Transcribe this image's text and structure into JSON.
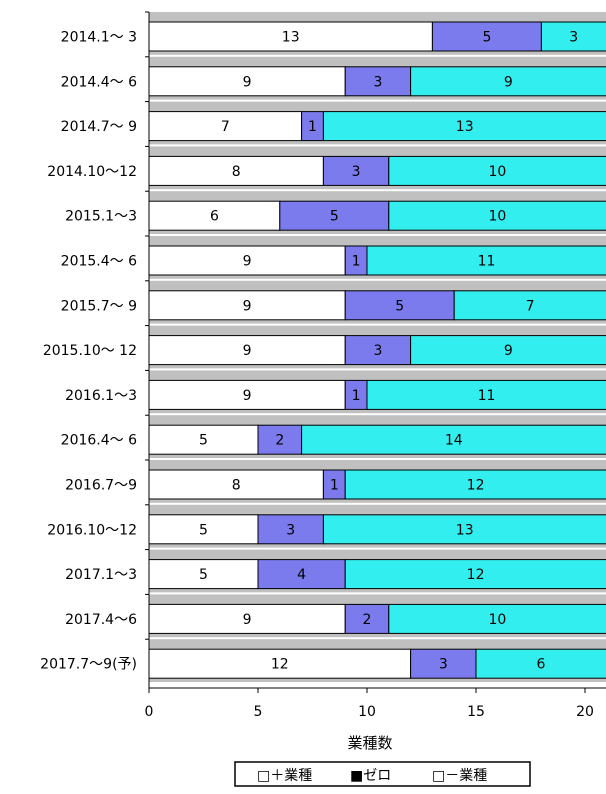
{
  "chart_data": {
    "type": "bar",
    "orientation": "horizontal",
    "stacked": true,
    "categories": [
      "2014.1～ 3",
      "2014.4～ 6",
      "2014.7～ 9",
      "2014.10～12",
      "2015.1～3",
      "2015.4～ 6",
      "2015.7～ 9",
      "2015.10～ 12",
      "2016.1～3",
      "2016.4～ 6",
      "2016.7～9",
      "2016.10～12",
      "2017.1～3",
      "2017.4～6",
      "2017.7～9(予)"
    ],
    "series": [
      {
        "name": "＋業種",
        "color": "#ffffff",
        "values": [
          13,
          9,
          7,
          8,
          6,
          9,
          9,
          9,
          9,
          5,
          8,
          5,
          5,
          9,
          12
        ]
      },
      {
        "name": "ゼロ",
        "color": "#7b7bee",
        "values": [
          5,
          3,
          1,
          3,
          5,
          1,
          5,
          3,
          1,
          2,
          1,
          3,
          4,
          2,
          3
        ]
      },
      {
        "name": "－業種",
        "color": "#33eeee",
        "values": [
          3,
          9,
          13,
          10,
          10,
          11,
          7,
          9,
          11,
          14,
          12,
          13,
          12,
          10,
          6
        ]
      }
    ],
    "xlabel": "業種数",
    "ylabel": "",
    "xlim": [
      0,
      21
    ],
    "xticks": [
      "0",
      "5",
      "10",
      "15",
      "20"
    ],
    "legend_position": "bottom",
    "legend_labels": [
      "□＋業種",
      "■ゼロ",
      "□－業種"
    ],
    "row_background_color": "#c0c0c0"
  }
}
